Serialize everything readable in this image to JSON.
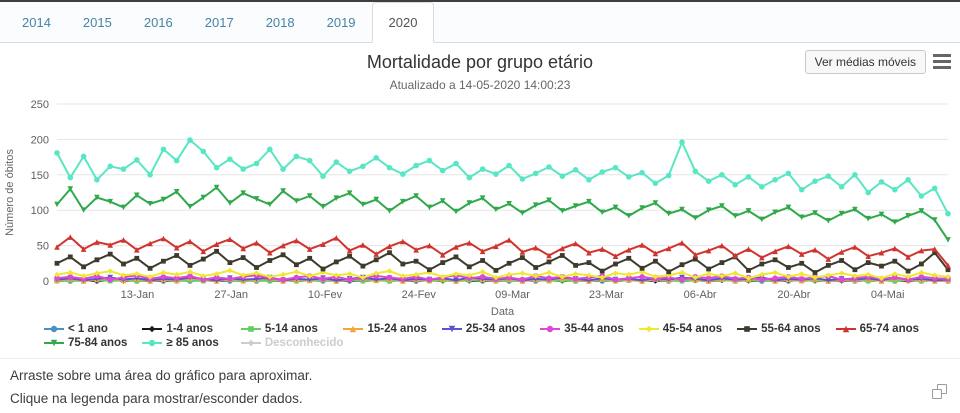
{
  "page": {
    "tabs": {
      "items": [
        "2014",
        "2015",
        "2016",
        "2017",
        "2018",
        "2019",
        "2020"
      ],
      "active": "2020"
    },
    "footer": {
      "lines": [
        "Arraste sobre uma área do gráfico para aproximar.",
        "Clique na legenda para mostrar/esconder dados."
      ]
    }
  },
  "toolbar": {
    "moving_averages_label": "Ver médias móveis"
  },
  "chart_data": {
    "type": "line",
    "title": "Mortalidade por grupo etário",
    "subtitle": "Atualizado a 14-05-2020 14:00:23",
    "xlabel": "Data",
    "ylabel": "Número de óbitos",
    "ylim": [
      0,
      250
    ],
    "yticks": [
      0,
      50,
      100,
      150,
      200,
      250
    ],
    "grid": true,
    "legend_position": "bottom",
    "x_axis": {
      "start_date": "01-Jan-2020",
      "end_date": "13-Mai-2020",
      "total_days": 133,
      "ticks": [
        {
          "label": "13-Jan",
          "day": 12
        },
        {
          "label": "27-Jan",
          "day": 26
        },
        {
          "label": "10-Fev",
          "day": 40
        },
        {
          "label": "24-Fev",
          "day": 54
        },
        {
          "label": "09-Mar",
          "day": 68
        },
        {
          "label": "23-Mar",
          "day": 82
        },
        {
          "label": "06-Abr",
          "day": 96
        },
        {
          "label": "20-Abr",
          "day": 110
        },
        {
          "label": "04-Mai",
          "day": 124
        }
      ]
    },
    "series": [
      {
        "name": "< 1 ano",
        "color": "#4A90C4",
        "marker": "circle",
        "visible": true,
        "values": [
          1,
          0,
          1,
          0,
          1,
          2,
          0,
          1,
          0,
          1,
          0,
          1,
          2,
          0,
          1,
          0,
          1,
          0,
          2,
          1,
          0,
          1,
          0,
          1,
          2,
          0,
          1,
          0,
          1,
          1,
          0,
          2,
          0,
          1,
          0,
          1,
          0,
          2,
          1,
          0,
          1,
          0,
          1,
          2,
          0,
          1,
          0,
          1,
          1,
          0,
          2,
          0,
          1,
          0,
          1,
          0,
          2,
          1,
          0,
          1,
          0,
          1,
          2,
          0,
          1,
          0,
          1,
          0
        ]
      },
      {
        "name": "1-4 anos",
        "color": "#1B1B1B",
        "marker": "diamond",
        "visible": true,
        "values": [
          0,
          1,
          1,
          0,
          2,
          0,
          1,
          0,
          1,
          0,
          2,
          1,
          0,
          1,
          0,
          2,
          0,
          1,
          0,
          1,
          2,
          0,
          1,
          0,
          1,
          2,
          0,
          1,
          1,
          0,
          2,
          0,
          1,
          0,
          1,
          0,
          2,
          1,
          0,
          1,
          0,
          2,
          0,
          1,
          1,
          0,
          2,
          0,
          1,
          0,
          1,
          2,
          0,
          1,
          0,
          1,
          2,
          0,
          1,
          0,
          2,
          0,
          1,
          1,
          0,
          2,
          0,
          1
        ]
      },
      {
        "name": "5-14 anos",
        "color": "#63CE63",
        "marker": "square",
        "visible": true,
        "values": [
          0,
          1,
          0,
          2,
          0,
          1,
          0,
          1,
          2,
          0,
          1,
          0,
          2,
          1,
          0,
          1,
          0,
          2,
          0,
          1,
          1,
          0,
          2,
          0,
          1,
          0,
          1,
          2,
          0,
          1,
          0,
          1,
          2,
          0,
          1,
          0,
          2,
          0,
          1,
          0,
          1,
          2,
          0,
          1,
          0,
          2,
          1,
          0,
          1,
          0,
          2,
          0,
          1,
          1,
          0,
          2,
          0,
          1,
          0,
          1,
          2,
          0,
          1,
          0,
          2,
          0,
          1,
          0
        ]
      },
      {
        "name": "15-24 anos",
        "color": "#F2A63B",
        "marker": "triangle",
        "visible": true,
        "values": [
          1,
          3,
          0,
          2,
          4,
          1,
          3,
          0,
          2,
          1,
          4,
          2,
          0,
          3,
          1,
          2,
          4,
          0,
          2,
          1,
          3,
          0,
          2,
          4,
          1,
          3,
          0,
          2,
          1,
          3,
          0,
          4,
          2,
          1,
          3,
          0,
          2,
          1,
          4,
          2,
          0,
          3,
          1,
          2,
          0,
          3,
          1,
          4,
          2,
          0,
          3,
          1,
          2,
          4,
          0,
          2,
          1,
          3,
          0,
          2,
          1,
          3,
          0,
          4,
          1,
          2,
          0,
          1
        ]
      },
      {
        "name": "25-34 anos",
        "color": "#5B52CE",
        "marker": "triangle-down",
        "visible": true,
        "values": [
          2,
          4,
          1,
          3,
          5,
          2,
          4,
          1,
          3,
          2,
          5,
          3,
          1,
          4,
          2,
          3,
          5,
          1,
          3,
          2,
          4,
          1,
          3,
          5,
          2,
          4,
          1,
          3,
          2,
          4,
          1,
          5,
          3,
          2,
          4,
          1,
          3,
          2,
          5,
          3,
          1,
          4,
          2,
          3,
          1,
          4,
          2,
          5,
          3,
          1,
          4,
          2,
          3,
          5,
          1,
          3,
          2,
          4,
          1,
          3,
          2,
          4,
          1,
          5,
          2,
          3,
          1,
          2
        ]
      },
      {
        "name": "35-44 anos",
        "color": "#DD48D6",
        "marker": "circle",
        "visible": true,
        "values": [
          4,
          6,
          3,
          7,
          2,
          5,
          8,
          3,
          6,
          4,
          7,
          2,
          5,
          3,
          6,
          8,
          4,
          2,
          5,
          7,
          3,
          6,
          2,
          4,
          7,
          5,
          3,
          6,
          2,
          5,
          8,
          4,
          6,
          3,
          5,
          2,
          7,
          4,
          6,
          3,
          5,
          7,
          2,
          4,
          6,
          3,
          5,
          2,
          6,
          4,
          7,
          3,
          5,
          2,
          4,
          6,
          3,
          5,
          7,
          2,
          4,
          6,
          3,
          5,
          2,
          6,
          4,
          3
        ]
      },
      {
        "name": "45-54 anos",
        "color": "#EEE82E",
        "marker": "diamond",
        "visible": true,
        "values": [
          9,
          12,
          7,
          11,
          14,
          8,
          10,
          6,
          12,
          9,
          13,
          7,
          10,
          15,
          8,
          11,
          6,
          9,
          13,
          7,
          12,
          8,
          10,
          5,
          11,
          14,
          7,
          9,
          12,
          6,
          10,
          8,
          13,
          5,
          9,
          11,
          7,
          12,
          6,
          10,
          8,
          5,
          11,
          9,
          13,
          6,
          8,
          12,
          5,
          10,
          7,
          11,
          4,
          9,
          12,
          6,
          10,
          5,
          8,
          11,
          7,
          9,
          4,
          10,
          6,
          12,
          8,
          6
        ]
      },
      {
        "name": "55-64 anos",
        "color": "#3E3B2C",
        "marker": "square",
        "visible": true,
        "values": [
          25,
          34,
          20,
          30,
          38,
          24,
          32,
          18,
          28,
          36,
          22,
          31,
          42,
          26,
          33,
          19,
          29,
          37,
          23,
          32,
          17,
          27,
          35,
          21,
          30,
          40,
          24,
          28,
          16,
          26,
          34,
          20,
          29,
          15,
          25,
          33,
          19,
          27,
          36,
          22,
          26,
          14,
          24,
          32,
          18,
          28,
          13,
          23,
          31,
          17,
          26,
          34,
          15,
          24,
          30,
          19,
          25,
          12,
          22,
          29,
          16,
          26,
          21,
          28,
          14,
          24,
          40,
          16
        ]
      },
      {
        "name": "65-74 anos",
        "color": "#D0342F",
        "marker": "triangle",
        "visible": true,
        "values": [
          48,
          62,
          45,
          55,
          51,
          58,
          44,
          53,
          60,
          47,
          56,
          42,
          52,
          59,
          46,
          54,
          40,
          50,
          57,
          45,
          52,
          61,
          43,
          51,
          38,
          49,
          56,
          44,
          50,
          37,
          48,
          54,
          42,
          49,
          58,
          41,
          47,
          36,
          46,
          53,
          40,
          45,
          35,
          44,
          51,
          39,
          46,
          54,
          37,
          43,
          50,
          36,
          45,
          33,
          42,
          49,
          38,
          44,
          31,
          41,
          48,
          35,
          40,
          46,
          34,
          43,
          45,
          22
        ]
      },
      {
        "name": "75-84 anos",
        "color": "#2FA94C",
        "marker": "triangle-down",
        "visible": true,
        "values": [
          108,
          130,
          100,
          118,
          112,
          104,
          121,
          109,
          115,
          126,
          105,
          118,
          132,
          110,
          124,
          116,
          108,
          127,
          113,
          120,
          105,
          117,
          124,
          108,
          115,
          99,
          112,
          120,
          104,
          113,
          98,
          110,
          117,
          101,
          109,
          96,
          107,
          114,
          99,
          106,
          112,
          97,
          104,
          92,
          103,
          110,
          95,
          101,
          89,
          100,
          106,
          92,
          99,
          87,
          97,
          104,
          90,
          96,
          85,
          95,
          101,
          88,
          94,
          83,
          92,
          99,
          86,
          58
        ]
      },
      {
        "name": "≥ 85 anos",
        "color": "#58E6C4",
        "marker": "circle",
        "visible": true,
        "values": [
          181,
          146,
          176,
          143,
          162,
          158,
          171,
          150,
          186,
          170,
          199,
          183,
          160,
          172,
          158,
          166,
          186,
          158,
          176,
          170,
          148,
          168,
          155,
          162,
          174,
          160,
          151,
          163,
          170,
          156,
          166,
          146,
          158,
          151,
          163,
          144,
          152,
          161,
          148,
          157,
          143,
          154,
          160,
          147,
          153,
          138,
          149,
          196,
          155,
          141,
          150,
          136,
          147,
          133,
          143,
          152,
          129,
          141,
          148,
          133,
          150,
          125,
          140,
          129,
          143,
          120,
          131,
          95
        ]
      },
      {
        "name": "Desconhecido",
        "color": "#CCCCCC",
        "marker": "diamond",
        "visible": false,
        "values": []
      }
    ]
  }
}
